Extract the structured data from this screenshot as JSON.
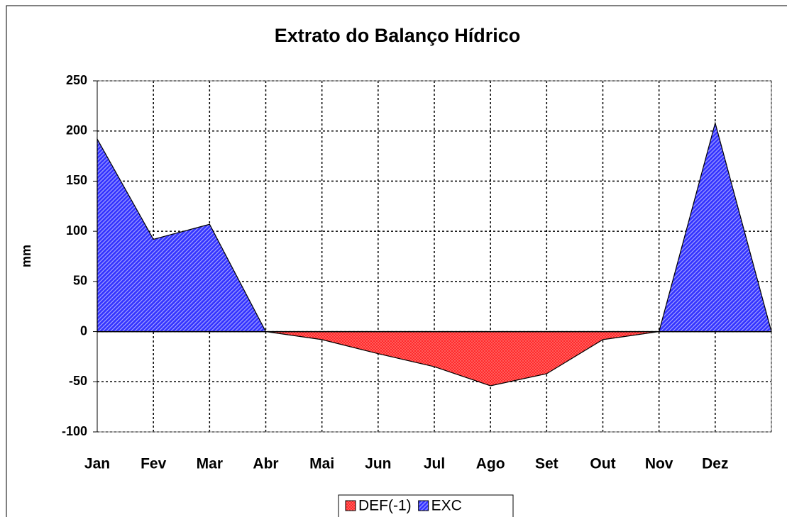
{
  "chart_data": {
    "type": "area",
    "title": "Extrato do Balanço Hídrico",
    "ylabel": "mm",
    "categories": [
      "Jan",
      "Fev",
      "Mar",
      "Abr",
      "Mai",
      "Jun",
      "Jul",
      "Ago",
      "Set",
      "Out",
      "Nov",
      "Dez",
      null
    ],
    "series": [
      {
        "name": "DEF(-1)",
        "color": "#ff2a2a",
        "values": [
          0,
          0,
          0,
          0,
          -8,
          -22,
          -35,
          -54,
          -42,
          -8,
          0,
          0,
          0
        ]
      },
      {
        "name": "EXC",
        "color": "#3333ff",
        "values": [
          192,
          92,
          107,
          0,
          0,
          0,
          0,
          0,
          0,
          0,
          0,
          208,
          0
        ]
      }
    ],
    "ylim": [
      -100,
      250
    ],
    "yticks": [
      -100,
      -50,
      0,
      50,
      100,
      150,
      200,
      250
    ],
    "grid": true,
    "legend": "bottom"
  }
}
